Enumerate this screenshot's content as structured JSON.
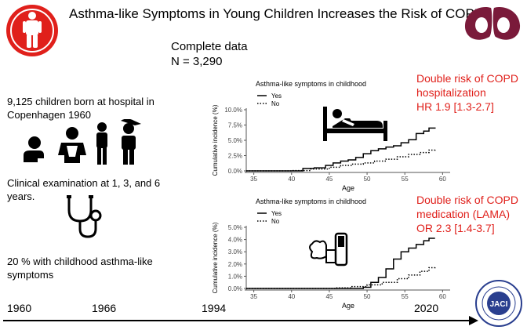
{
  "title": "Asthma-like Symptoms in Young Children Increases the Risk of COPD",
  "complete_data": {
    "line1": "Complete data",
    "line2": "N = 3,290"
  },
  "left_text": {
    "births": "9,125 children born at hospital in Copenhagen 1960",
    "exam": "Clinical examination at 1, 3, and 6 years.",
    "pct": "20 % with childhood asthma-like symptoms"
  },
  "timeline": [
    "1960",
    "1966",
    "1994",
    "2020"
  ],
  "results": {
    "hosp": [
      "Double risk of COPD",
      "hospitalization",
      "HR 1.9 [1.3-2.7]"
    ],
    "med": [
      "Double risk of COPD",
      "medication (LAMA)",
      "OR 2.3 [1.4-3.7]"
    ]
  },
  "journal_logo_text": "JACI",
  "colors": {
    "accent_red": "#e0201b",
    "logo_maroon": "#7a1a3a",
    "badge_blue": "#2a3f8f"
  },
  "chart_data": [
    {
      "type": "line",
      "title": "Asthma-like symptoms in childhood",
      "xlabel": "Age",
      "ylabel": "Cumulative incidence (%)",
      "xlim": [
        34,
        61
      ],
      "ylim": [
        0,
        10
      ],
      "xticks": [
        35,
        40,
        45,
        50,
        55,
        60
      ],
      "yticks": [
        "0.0%",
        "2.5%",
        "5.0%",
        "7.5%",
        "10.0%"
      ],
      "ytick_values": [
        0,
        2.5,
        5,
        7.5,
        10
      ],
      "legend": [
        "Yes",
        "No"
      ],
      "series": [
        {
          "name": "Yes",
          "x": [
            34,
            38,
            41,
            41.5,
            43,
            44.5,
            45.5,
            46.5,
            47.5,
            48.5,
            49.5,
            50.5,
            51.5,
            52.5,
            53.5,
            54.5,
            55.5,
            56.5,
            57.5,
            58.2,
            59
          ],
          "y": [
            0,
            0,
            0,
            0.4,
            0.5,
            0.9,
            1.3,
            1.6,
            1.8,
            2.2,
            2.8,
            3.3,
            3.6,
            3.9,
            4.1,
            4.6,
            5.1,
            6.1,
            6.5,
            7.0,
            7.1
          ]
        },
        {
          "name": "No",
          "x": [
            34,
            38,
            40,
            42.5,
            45,
            46.5,
            48,
            49.5,
            51,
            52.5,
            54,
            55.5,
            57,
            58.2,
            59
          ],
          "y": [
            0,
            0,
            0.05,
            0.3,
            0.6,
            0.9,
            1.1,
            1.3,
            1.6,
            1.9,
            2.3,
            2.7,
            3.0,
            3.4,
            3.6
          ]
        }
      ]
    },
    {
      "type": "line",
      "title": "Asthma-like symptoms in childhood",
      "xlabel": "Age",
      "ylabel": "Cumulative incidence (%)",
      "xlim": [
        34,
        61
      ],
      "ylim": [
        0,
        5
      ],
      "xticks": [
        35,
        40,
        45,
        50,
        55,
        60
      ],
      "yticks": [
        "0.0%",
        "1.0%",
        "2.0%",
        "3.0%",
        "4.0%",
        "5.0%"
      ],
      "ytick_values": [
        0,
        1,
        2,
        3,
        4,
        5
      ],
      "legend": [
        "Yes",
        "No"
      ],
      "series": [
        {
          "name": "Yes",
          "x": [
            34,
            45,
            49.5,
            50.5,
            51.5,
            52.5,
            53.5,
            54.5,
            55.5,
            56.5,
            57.5,
            58.2,
            59
          ],
          "y": [
            0,
            0,
            0.1,
            0.5,
            0.9,
            1.6,
            2.4,
            3.0,
            3.3,
            3.6,
            3.9,
            4.1,
            4.1
          ]
        },
        {
          "name": "No",
          "x": [
            34,
            44,
            46,
            48,
            50,
            52,
            54,
            55.5,
            57,
            58.2,
            59
          ],
          "y": [
            0,
            0,
            0.05,
            0.15,
            0.3,
            0.5,
            0.8,
            1.1,
            1.4,
            1.7,
            1.8
          ]
        }
      ]
    }
  ]
}
